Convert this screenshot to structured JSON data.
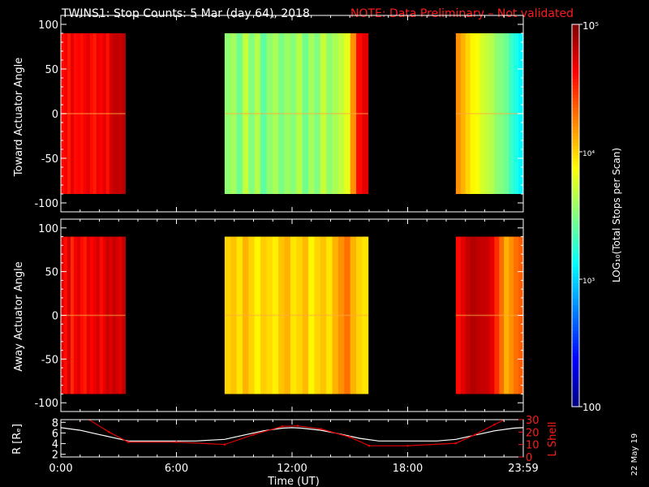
{
  "header": {
    "title": "TWINS1: Stop Counts:  5 Mar (day  64), 2018",
    "note": "NOTE: Data Preliminary – Not validated"
  },
  "side_date": "22 May 19",
  "colors": {
    "background": "#000000",
    "axis": "#ffffff",
    "note": "#ff1a1a",
    "l_shell_line": "#e00000",
    "r_line": "#ffffff"
  },
  "colorbar": {
    "label": "LOG₁₀(Total Stops per Scan)",
    "ticks": [
      {
        "value": 100000,
        "label": "10⁵"
      },
      {
        "value": 10000,
        "label": "10⁴"
      },
      {
        "value": 1000,
        "label": "10³"
      },
      {
        "value": 100,
        "label": "100"
      }
    ],
    "range": [
      100,
      100000
    ],
    "scale": "log"
  },
  "chart_data": [
    {
      "type": "heatmap",
      "panel": "toward",
      "ylabel": "Toward Actuator Angle",
      "ylim": [
        -110,
        110
      ],
      "y_ticks": [
        100,
        50,
        0,
        -50,
        -100
      ],
      "x_ticks": [
        "0:00",
        "6:00",
        "12:00",
        "18:00",
        "23:59"
      ],
      "xlim_hours": [
        0,
        24
      ],
      "data_extent_deg": [
        -90,
        90
      ],
      "segments": [
        {
          "start_hour": 0.0,
          "end_hour": 3.35,
          "log_counts": [
            4.6,
            4.65,
            4.55,
            4.7,
            4.6,
            4.62,
            4.58,
            4.65,
            4.72,
            4.6,
            4.55,
            4.68,
            4.62,
            4.7,
            4.58,
            4.75,
            4.8,
            4.82,
            4.78,
            4.85
          ]
        },
        {
          "start_hour": 8.5,
          "end_hour": 15.95,
          "log_counts": [
            3.55,
            3.6,
            3.45,
            3.7,
            3.5,
            3.65,
            3.4,
            3.55,
            3.62,
            3.48,
            3.58,
            3.52,
            3.66,
            3.45,
            3.6,
            3.5,
            3.72,
            3.55,
            3.62,
            3.7,
            3.8,
            4.2,
            4.6,
            4.7
          ]
        },
        {
          "start_hour": 20.5,
          "end_hour": 24.0,
          "log_counts": [
            4.2,
            4.1,
            4.0,
            3.9,
            3.85,
            3.75,
            3.7,
            3.65,
            3.55,
            3.5,
            3.45,
            3.3,
            3.2,
            3.1
          ]
        }
      ]
    },
    {
      "type": "heatmap",
      "panel": "away",
      "ylabel": "Away Actuator Angle",
      "ylim": [
        -110,
        110
      ],
      "y_ticks": [
        100,
        50,
        0,
        -50,
        -100
      ],
      "x_ticks": [
        "0:00",
        "6:00",
        "12:00",
        "18:00",
        "23:59"
      ],
      "xlim_hours": [
        0,
        24
      ],
      "data_extent_deg": [
        -90,
        90
      ],
      "segments": [
        {
          "start_hour": 0.0,
          "end_hour": 3.35,
          "log_counts": [
            4.7,
            4.6,
            4.75,
            4.5,
            4.65,
            4.72,
            4.6,
            4.55,
            4.7,
            4.62,
            4.68,
            4.75,
            4.6,
            4.7,
            4.78,
            4.72,
            4.8,
            4.75,
            4.7,
            4.82
          ]
        },
        {
          "start_hour": 8.5,
          "end_hour": 15.95,
          "log_counts": [
            4.0,
            4.05,
            3.95,
            4.1,
            4.0,
            3.9,
            4.02,
            3.98,
            3.92,
            4.05,
            4.1,
            3.95,
            4.0,
            4.08,
            3.9,
            4.0,
            4.05,
            3.95,
            4.1,
            4.2,
            4.3,
            4.1,
            4.0,
            3.95
          ]
        },
        {
          "start_hour": 20.5,
          "end_hour": 24.0,
          "log_counts": [
            4.6,
            4.7,
            4.8,
            4.85,
            4.82,
            4.8,
            4.78,
            4.7,
            4.5,
            4.3,
            4.1,
            4.2,
            4.3,
            4.35
          ]
        }
      ]
    },
    {
      "type": "line",
      "panel": "orbit",
      "ylabel": "R [Rₑ]",
      "ylabel_right": "L Shell",
      "ylim": [
        1.5,
        8.5
      ],
      "y_ticks": [
        8,
        6,
        4,
        2
      ],
      "ylim_right": [
        0,
        30
      ],
      "y_ticks_right": [
        30,
        20,
        10,
        0
      ],
      "x_ticks": [
        "0:00",
        "6:00",
        "12:00",
        "18:00",
        "23:59"
      ],
      "xlabel": "Time (UT)",
      "series": [
        {
          "name": "R [Rₑ]",
          "axis": "left",
          "x": [
            0,
            1,
            2,
            3,
            3.5,
            5,
            6,
            7,
            8.5,
            9.5,
            10.5,
            11.5,
            12.0,
            12.5,
            13.5,
            14.5,
            15.5,
            16.5,
            18,
            19.5,
            20.5,
            21.5,
            22.5,
            23.5,
            24
          ],
          "y": [
            7.0,
            6.5,
            5.7,
            4.9,
            4.5,
            4.5,
            4.5,
            4.5,
            4.8,
            5.6,
            6.4,
            6.9,
            7.0,
            6.9,
            6.5,
            5.8,
            5.0,
            4.5,
            4.5,
            4.5,
            4.8,
            5.6,
            6.4,
            6.9,
            7.0
          ]
        },
        {
          "name": "L Shell",
          "axis": "right",
          "x": [
            1.4,
            2.5,
            3.5,
            6.0,
            8.5,
            10.0,
            11.5,
            12.3,
            13.5,
            15.0,
            16.0,
            18.0,
            20.5,
            21.5,
            22.5,
            23.1
          ],
          "y": [
            30.5,
            20,
            12,
            12,
            10,
            18,
            24.5,
            25.0,
            22.5,
            16,
            9,
            9,
            11,
            18,
            26,
            30.5
          ]
        }
      ]
    }
  ]
}
